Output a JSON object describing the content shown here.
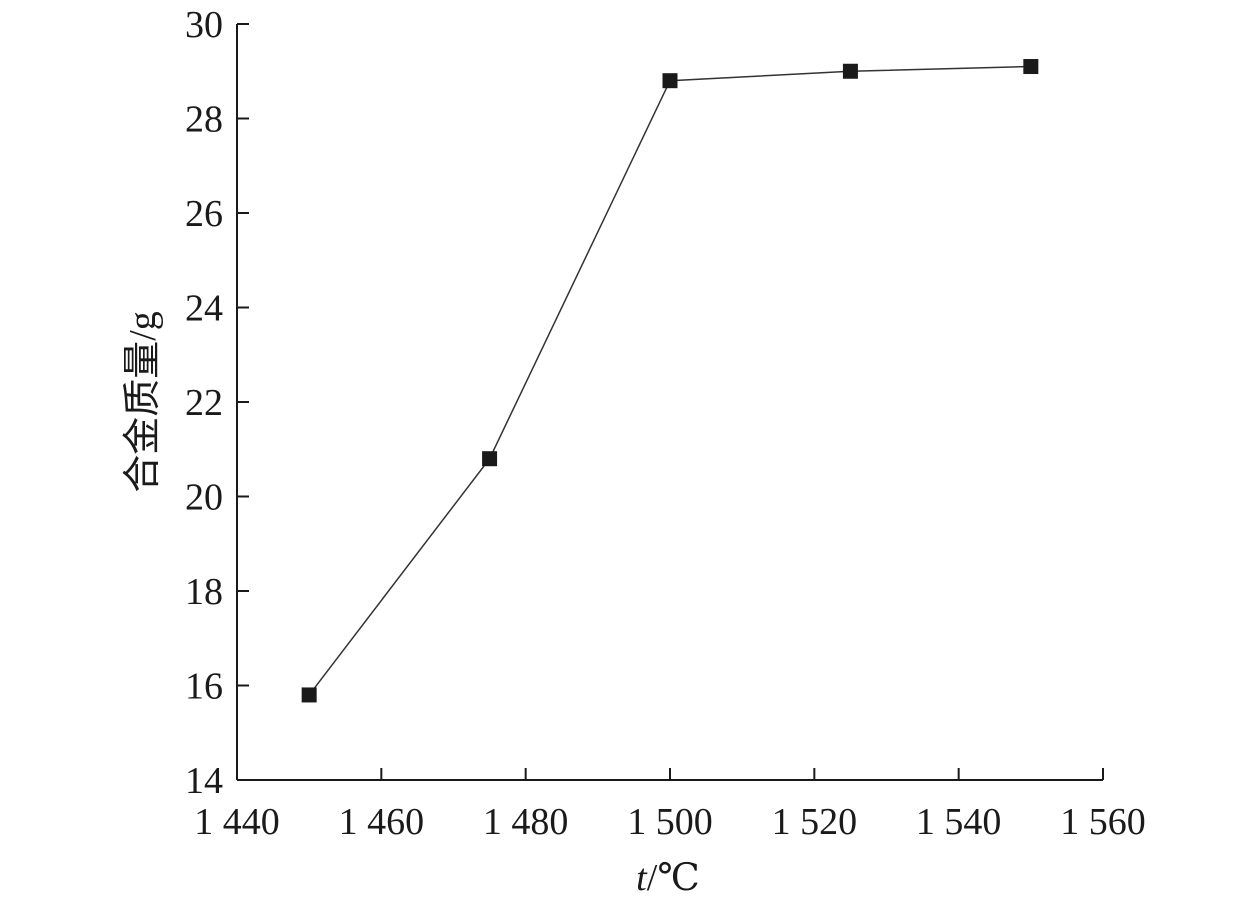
{
  "chart_data": {
    "type": "line",
    "title": "",
    "xlabel_var": "t",
    "xlabel_unit": "/℃",
    "ylabel": "合金质量/g",
    "xlim": [
      1440,
      1560
    ],
    "ylim": [
      14,
      30
    ],
    "x_ticks": [
      1440,
      1460,
      1480,
      1500,
      1520,
      1540,
      1560
    ],
    "x_tick_labels": [
      "1 440",
      "1 460",
      "1 480",
      "1 500",
      "1 520",
      "1 540",
      "1 560"
    ],
    "y_ticks": [
      14,
      16,
      18,
      20,
      22,
      24,
      26,
      28,
      30
    ],
    "y_tick_labels": [
      "14",
      "16",
      "18",
      "20",
      "22",
      "24",
      "26",
      "28",
      "30"
    ],
    "grid": false,
    "legend": "none",
    "marker": "square",
    "colors": {
      "line": "#333333",
      "marker": "#1a1a1a",
      "axis": "#1a1a1a"
    },
    "series": [
      {
        "x": [
          1450,
          1475,
          1500,
          1525,
          1550
        ],
        "y": [
          15.8,
          20.8,
          28.8,
          29.0,
          29.1
        ]
      }
    ]
  }
}
